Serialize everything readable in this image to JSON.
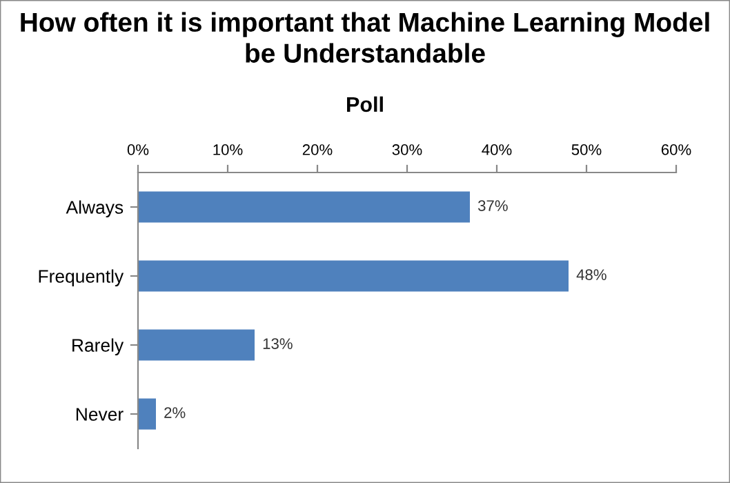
{
  "chart_data": {
    "type": "bar",
    "orientation": "horizontal",
    "title": "How often it is important that Machine Learning Model be Understandable",
    "subtitle": "Poll",
    "categories": [
      "Always",
      "Frequently",
      "Rarely",
      "Never"
    ],
    "values": [
      37,
      48,
      13,
      2
    ],
    "value_labels": [
      "37%",
      "48%",
      "13%",
      "2%"
    ],
    "color": "#4f81bd",
    "xlim": [
      0,
      60
    ],
    "xticks": [
      {
        "value": 0,
        "label": "0%"
      },
      {
        "value": 10,
        "label": "10%"
      },
      {
        "value": 20,
        "label": "20%"
      },
      {
        "value": 30,
        "label": "30%"
      },
      {
        "value": 40,
        "label": "40%"
      },
      {
        "value": 50,
        "label": "50%"
      },
      {
        "value": 60,
        "label": "60%"
      }
    ],
    "grid": false,
    "legend": false
  }
}
